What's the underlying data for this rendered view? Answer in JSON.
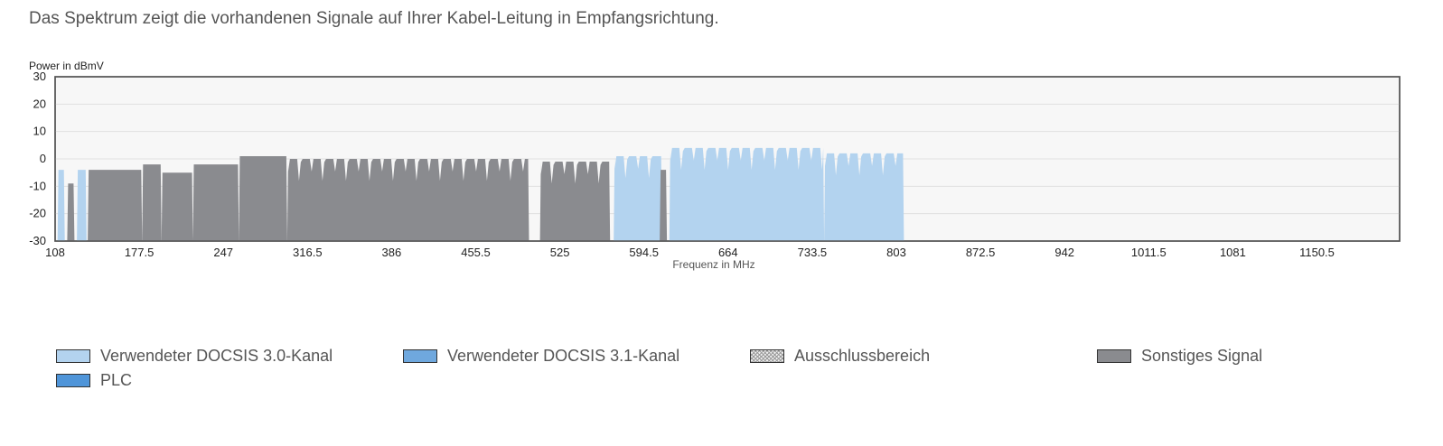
{
  "intro_text": "Das Spektrum zeigt die vorhandenen Signale auf Ihrer Kabel-Leitung in Empfangsrichtung.",
  "colors": {
    "docsis30": "#b3d3ef",
    "docsis31": "#6fa8de",
    "exclusion": "#e6e6e6",
    "other": "#8a8b8f",
    "plc": "#4f95d9",
    "plot_bg": "#f7f7f7",
    "grid": "#e0e0e0"
  },
  "chart_data": {
    "type": "area",
    "title": "",
    "ylabel": "Power in dBmV",
    "xlabel": "Frequenz in MHz",
    "ylim": [
      -30,
      30
    ],
    "xlim": [
      108,
      1220
    ],
    "y_ticks": [
      "30",
      "20",
      "10",
      "0",
      "-10",
      "-20",
      "-30"
    ],
    "x_ticks": [
      "108",
      "177.5",
      "247",
      "316.5",
      "386",
      "455.5",
      "525",
      "594.5",
      "664",
      "733.5",
      "803",
      "872.5",
      "942",
      "1011.5",
      "1081",
      "1150.5"
    ],
    "grid": true,
    "legend": [
      {
        "label": "Verwendeter DOCSIS 3.0-Kanal",
        "key": "docsis30"
      },
      {
        "label": "Verwendeter DOCSIS 3.1-Kanal",
        "key": "docsis31"
      },
      {
        "label": "Ausschlussbereich",
        "key": "exclusion"
      },
      {
        "label": "Sonstiges Signal",
        "key": "other"
      },
      {
        "label": "PLC",
        "key": "plc"
      }
    ],
    "series": [
      {
        "key": "docsis30",
        "regions": [
          {
            "start": 110,
            "end": 116,
            "level": -4,
            "ripple": 0
          },
          {
            "start": 126,
            "end": 134,
            "level": -4,
            "ripple": 0
          },
          {
            "start": 570,
            "end": 610,
            "level": 1,
            "ripple": 8
          },
          {
            "start": 616,
            "end": 744,
            "level": 4,
            "ripple": 8
          },
          {
            "start": 744,
            "end": 810,
            "level": 2,
            "ripple": 8
          }
        ]
      },
      {
        "key": "other",
        "regions": [
          {
            "start": 118,
            "end": 124,
            "level": -9,
            "ripple": 0
          },
          {
            "start": 135,
            "end": 180,
            "level": -4,
            "ripple": 0
          },
          {
            "start": 180,
            "end": 196,
            "level": -2,
            "ripple": 0
          },
          {
            "start": 196,
            "end": 222,
            "level": -5,
            "ripple": 0
          },
          {
            "start": 222,
            "end": 260,
            "level": -2,
            "ripple": 0
          },
          {
            "start": 260,
            "end": 300,
            "level": 1,
            "ripple": 0
          },
          {
            "start": 300,
            "end": 500,
            "level": 0,
            "ripple": 8
          },
          {
            "start": 509,
            "end": 567,
            "level": -1,
            "ripple": 8
          },
          {
            "start": 608,
            "end": 614,
            "level": -4,
            "ripple": 0
          }
        ]
      }
    ]
  }
}
